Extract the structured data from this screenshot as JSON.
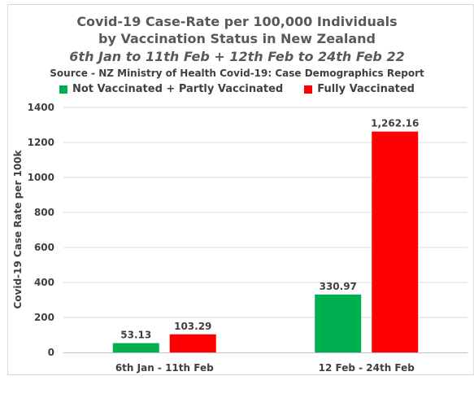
{
  "chart_data": {
    "type": "bar",
    "title_lines": [
      "Covid-19 Case-Rate per 100,000 Individuals",
      "by Vaccination Status in New Zealand",
      "6th Jan to 11th Feb + 12th Feb to 24th Feb 22"
    ],
    "subtitle": "Source - NZ Ministry of Health Covid-19: Case Demographics Report",
    "categories": [
      "6th Jan - 11th Feb",
      "12 Feb - 24th Feb"
    ],
    "series": [
      {
        "name": "Not Vaccinated + Partly Vaccinated",
        "values": [
          53.13,
          330.97
        ],
        "labels": [
          "53.13",
          "330.97"
        ],
        "color": "#00b050"
      },
      {
        "name": "Fully Vaccinated",
        "values": [
          103.29,
          1262.16
        ],
        "labels": [
          "103.29",
          "1,262.16"
        ],
        "color": "#ff0000"
      }
    ],
    "ylabel": "Covid-19 Case Rate per 100k",
    "xlabel": "",
    "ylim": [
      0,
      1400
    ],
    "yticks": [
      "0",
      "200",
      "400",
      "600",
      "800",
      "1000",
      "1200",
      "1400"
    ],
    "grid": true,
    "legend_position": "top"
  }
}
